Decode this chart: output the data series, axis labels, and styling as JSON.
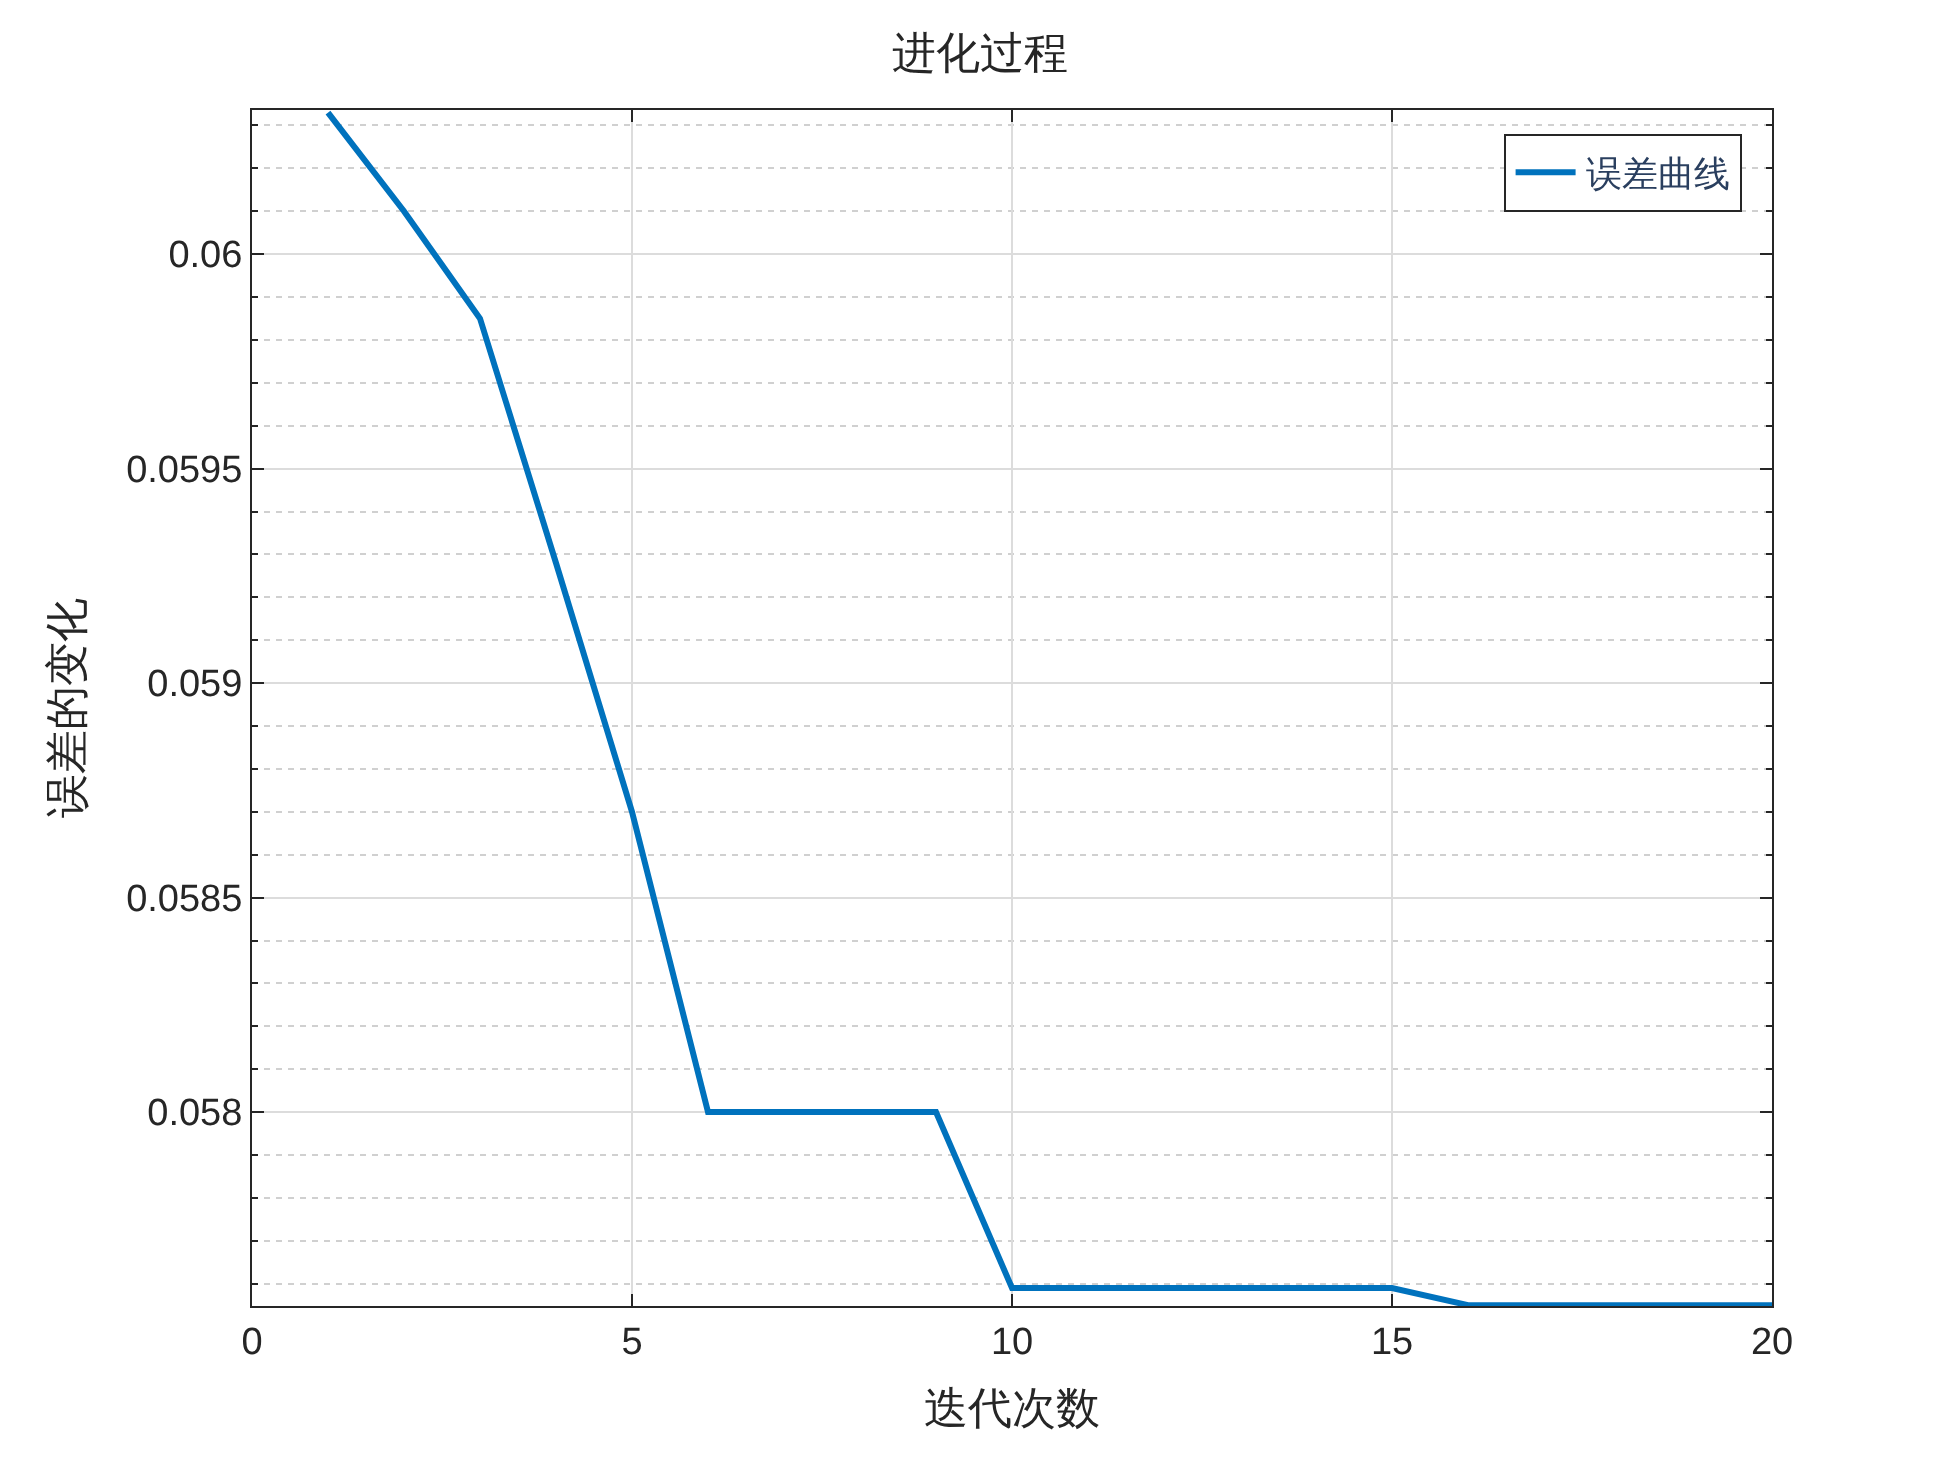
{
  "chart_data": {
    "type": "line",
    "title": "进化过程",
    "xlabel": "迭代次数",
    "ylabel": "误差的变化",
    "x": [
      1,
      2,
      3,
      4,
      5,
      6,
      7,
      8,
      9,
      10,
      11,
      12,
      13,
      14,
      15,
      16,
      17,
      18,
      19,
      20
    ],
    "series": [
      {
        "name": "误差曲线",
        "color": "#0072bd",
        "values": [
          0.06033,
          0.0601,
          0.05985,
          0.05928,
          0.0587,
          0.058,
          0.058,
          0.058,
          0.058,
          0.05759,
          0.05759,
          0.05759,
          0.05759,
          0.05759,
          0.05759,
          0.05755,
          0.05755,
          0.05755,
          0.05755,
          0.05755
        ]
      }
    ],
    "xlim": [
      0,
      20
    ],
    "xticks": [
      0,
      5,
      10,
      15,
      20
    ],
    "ylim": [
      0.057548,
      0.060336
    ],
    "yticks": [
      0.058,
      0.0585,
      0.059,
      0.0595,
      0.06
    ],
    "grid": true,
    "legend": "top right",
    "marker": "none",
    "line_style": "solid"
  }
}
